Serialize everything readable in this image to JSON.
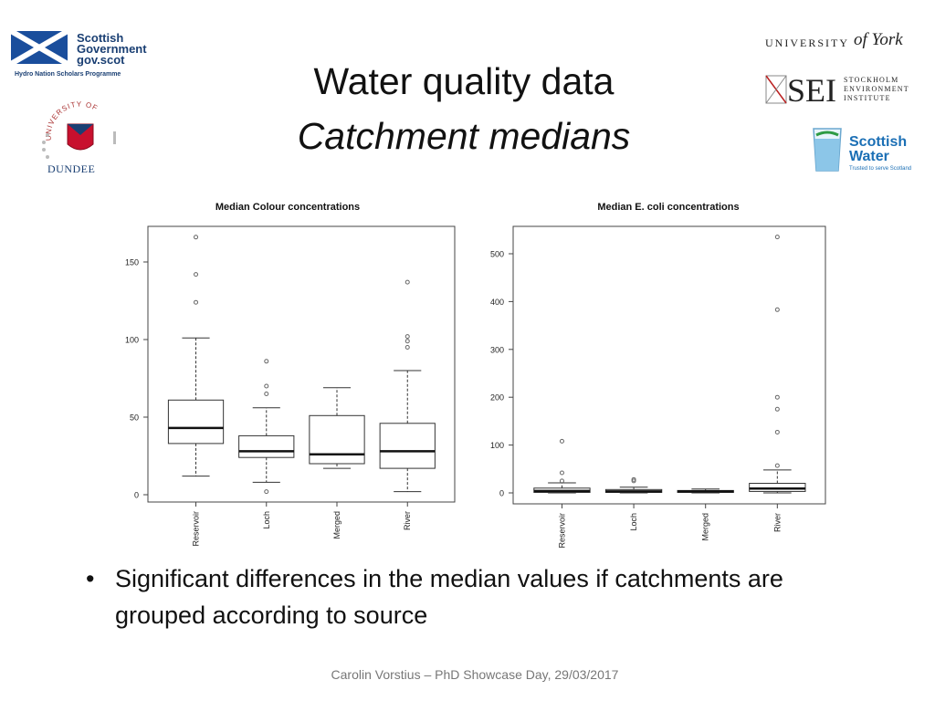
{
  "slide": {
    "title_line1": "Water quality data",
    "title_line2": "Catchment medians",
    "bullet": "Significant differences in the median values if catchments are grouped according to source",
    "bullet_marker": "•",
    "footer": "Carolin Vorstius – PhD Showcase Day, 29/03/2017"
  },
  "logos": {
    "scottish_government": {
      "line1": "Scottish",
      "line2": "Government",
      "line3": "gov.scot",
      "sub": "Hydro Nation Scholars Programme",
      "color": "#1a3f73"
    },
    "dundee": {
      "arc_text": "UNIVERSITY OF",
      "name": "DUNDEE"
    },
    "york": {
      "text": "UNIVERSITY",
      "script": "of York"
    },
    "sei": {
      "abbr": "SEI",
      "line1": "STOCKHOLM",
      "line2": "ENVIRONMENT",
      "line3": "INSTITUTE"
    },
    "scottish_water": {
      "line1": "Scottish",
      "line2": "Water",
      "tagline": "Trusted to serve Scotland",
      "color": "#1b6fb5"
    }
  },
  "chart_data": [
    {
      "type": "boxplot",
      "title": "Median Colour concentrations",
      "categories": [
        "Reservoir",
        "Loch",
        "Merged",
        "River"
      ],
      "ylim": [
        0,
        165
      ],
      "yticks": [
        0,
        50,
        100,
        150
      ],
      "boxes": [
        {
          "whisker_low": 12,
          "q1": 33,
          "median": 43,
          "q3": 61,
          "whisker_high": 101,
          "outliers": [
            124,
            142,
            166
          ]
        },
        {
          "whisker_low": 8,
          "q1": 24,
          "median": 28,
          "q3": 38,
          "whisker_high": 56,
          "outliers": [
            2,
            65,
            70,
            86
          ]
        },
        {
          "whisker_low": 17,
          "q1": 20,
          "median": 26,
          "q3": 51,
          "whisker_high": 69,
          "outliers": []
        },
        {
          "whisker_low": 2,
          "q1": 17,
          "median": 28,
          "q3": 46,
          "whisker_high": 80,
          "outliers": [
            95,
            99,
            102,
            137
          ]
        }
      ]
    },
    {
      "type": "boxplot",
      "title": "Median E. coli concentrations",
      "categories": [
        "Reservoir",
        "Loch",
        "Merged",
        "River"
      ],
      "ylim": [
        0,
        535
      ],
      "yticks": [
        0,
        100,
        200,
        300,
        400,
        500
      ],
      "boxes": [
        {
          "whisker_low": 0,
          "q1": 1,
          "median": 4,
          "q3": 10,
          "whisker_high": 21,
          "outliers": [
            25,
            42,
            108
          ]
        },
        {
          "whisker_low": 0,
          "q1": 1,
          "median": 3,
          "q3": 7,
          "whisker_high": 12,
          "outliers": [
            25,
            28
          ]
        },
        {
          "whisker_low": 0,
          "q1": 1,
          "median": 3,
          "q3": 5,
          "whisker_high": 8,
          "outliers": []
        },
        {
          "whisker_low": 0,
          "q1": 3,
          "median": 9,
          "q3": 20,
          "whisker_high": 48,
          "outliers": [
            57,
            127,
            175,
            200,
            383,
            535
          ]
        }
      ]
    }
  ]
}
